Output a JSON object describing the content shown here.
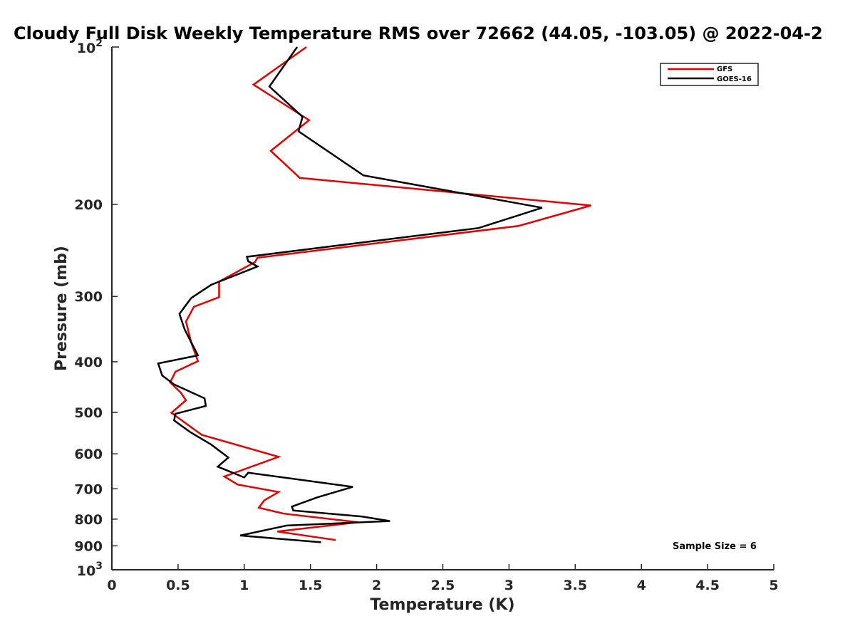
{
  "chart_data": {
    "type": "line",
    "title": "Cloudy Full Disk Weekly Temperature RMS over 72662 (44.05, -103.05) @ 2022-04-2",
    "xlabel": "Temperature (K)",
    "ylabel": "Pressure (mb)",
    "xlim": [
      0,
      5
    ],
    "ylim": [
      100,
      1000
    ],
    "y_scale": "log",
    "y_reversed": true,
    "grid": false,
    "legend_position": "top-right",
    "x_ticks": [
      0,
      0.5,
      1,
      1.5,
      2,
      2.5,
      3,
      3.5,
      4,
      4.5,
      5
    ],
    "x_tick_labels": [
      "0",
      "0.5",
      "1",
      "1.5",
      "2",
      "2.5",
      "3",
      "3.5",
      "4",
      "4.5",
      "5"
    ],
    "y_ticks": [
      200,
      300,
      400,
      500,
      600,
      700,
      800,
      900
    ],
    "y_tick_labels": [
      "200",
      "300",
      "400",
      "500",
      "600",
      "700",
      "800",
      "900"
    ],
    "y_decade_labels": [
      {
        "value": 100,
        "base": "10",
        "exp": "2"
      },
      {
        "value": 1000,
        "base": "10",
        "exp": "3"
      }
    ],
    "series": [
      {
        "name": "GFS",
        "color": "#e00000",
        "x": [
          1.47,
          1.07,
          1.49,
          1.2,
          1.42,
          3.62,
          3.07,
          1.1,
          1.08,
          0.81,
          0.81,
          0.62,
          0.56,
          0.6,
          0.65,
          0.48,
          0.44,
          0.52,
          0.56,
          0.45,
          0.68,
          1.26,
          0.85,
          0.95,
          1.26,
          1.15,
          1.11,
          1.3,
          1.86,
          1.25,
          1.69
        ],
        "y": [
          100,
          118,
          138,
          158,
          178,
          201,
          220,
          253,
          258,
          281,
          301,
          314,
          335,
          368,
          399,
          418,
          438,
          458,
          474,
          501,
          552,
          608,
          663,
          687,
          710,
          737,
          761,
          781,
          811,
          845,
          877
        ]
      },
      {
        "name": "GOES-16",
        "color": "#000000",
        "x": [
          1.4,
          1.19,
          1.44,
          1.41,
          1.9,
          3.25,
          2.77,
          1.02,
          1.03,
          1.1,
          0.75,
          0.6,
          0.51,
          0.55,
          0.65,
          0.35,
          0.38,
          0.47,
          0.7,
          0.71,
          0.48,
          0.47,
          0.59,
          0.75,
          0.88,
          0.8,
          1.0,
          1.03,
          1.82,
          1.55,
          1.36,
          1.37,
          1.89,
          2.1,
          1.32,
          0.97,
          1.32,
          1.58
        ],
        "y": [
          100,
          119,
          136,
          145,
          176,
          203,
          222,
          252,
          257,
          263,
          285,
          302,
          324,
          347,
          389,
          403,
          425,
          442,
          470,
          486,
          503,
          518,
          545,
          576,
          610,
          635,
          666,
          652,
          694,
          727,
          757,
          770,
          791,
          807,
          823,
          860,
          875,
          886
        ]
      }
    ],
    "annotations": [
      {
        "text": "Sample Size = 6",
        "x": 4.25,
        "y": 900
      }
    ]
  }
}
